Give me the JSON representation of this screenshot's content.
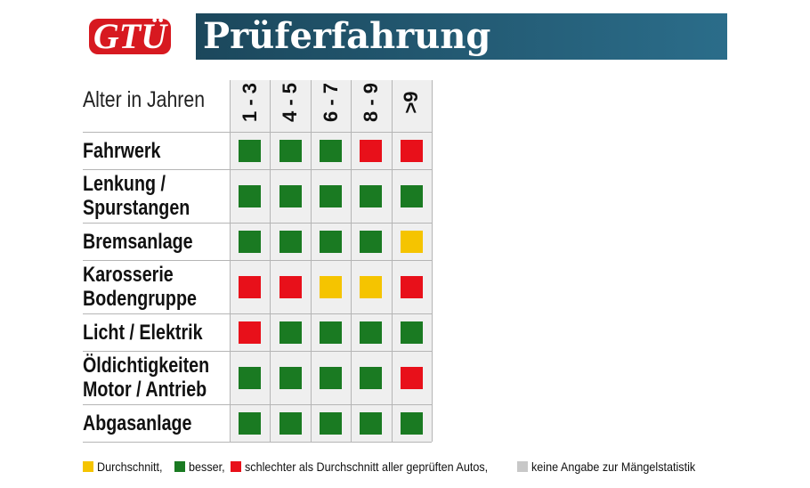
{
  "header": {
    "logo": "GTÜ",
    "title": "Prüferfahrung"
  },
  "table": {
    "corner": "Alter in Jahren",
    "columns": [
      "1 - 3",
      "4 - 5",
      "6 - 7",
      "8 - 9",
      ">9"
    ],
    "rows": [
      {
        "label": [
          "Fahrwerk"
        ],
        "cells": [
          "#1a7a22",
          "#1a7a22",
          "#1a7a22",
          "#e8101a",
          "#e8101a"
        ]
      },
      {
        "label": [
          "Lenkung /",
          "Spurstangen"
        ],
        "cells": [
          "#1a7a22",
          "#1a7a22",
          "#1a7a22",
          "#1a7a22",
          "#1a7a22"
        ]
      },
      {
        "label": [
          "Bremsanlage"
        ],
        "cells": [
          "#1a7a22",
          "#1a7a22",
          "#1a7a22",
          "#1a7a22",
          "#f5c400"
        ]
      },
      {
        "label": [
          "Karosserie",
          "Bodengruppe"
        ],
        "cells": [
          "#e8101a",
          "#e8101a",
          "#f5c400",
          "#f5c400",
          "#e8101a"
        ]
      },
      {
        "label": [
          "Licht / Elektrik"
        ],
        "cells": [
          "#e8101a",
          "#1a7a22",
          "#1a7a22",
          "#1a7a22",
          "#1a7a22"
        ]
      },
      {
        "label": [
          "Öldichtigkeiten",
          "Motor / Antrieb"
        ],
        "cells": [
          "#1a7a22",
          "#1a7a22",
          "#1a7a22",
          "#1a7a22",
          "#e8101a"
        ]
      },
      {
        "label": [
          "Abgasanlage"
        ],
        "cells": [
          "#1a7a22",
          "#1a7a22",
          "#1a7a22",
          "#1a7a22",
          "#1a7a22"
        ]
      }
    ]
  },
  "legend": [
    {
      "color": "#f5c400",
      "label": "Durchschnitt,"
    },
    {
      "color": "#1a7a22",
      "label": "besser,"
    },
    {
      "color": "#e8101a",
      "label": "schlechter als Durchschnitt aller geprüften Autos,"
    },
    {
      "color": "#c8c8c8",
      "label": "keine Angabe zur Mängelstatistik"
    }
  ]
}
